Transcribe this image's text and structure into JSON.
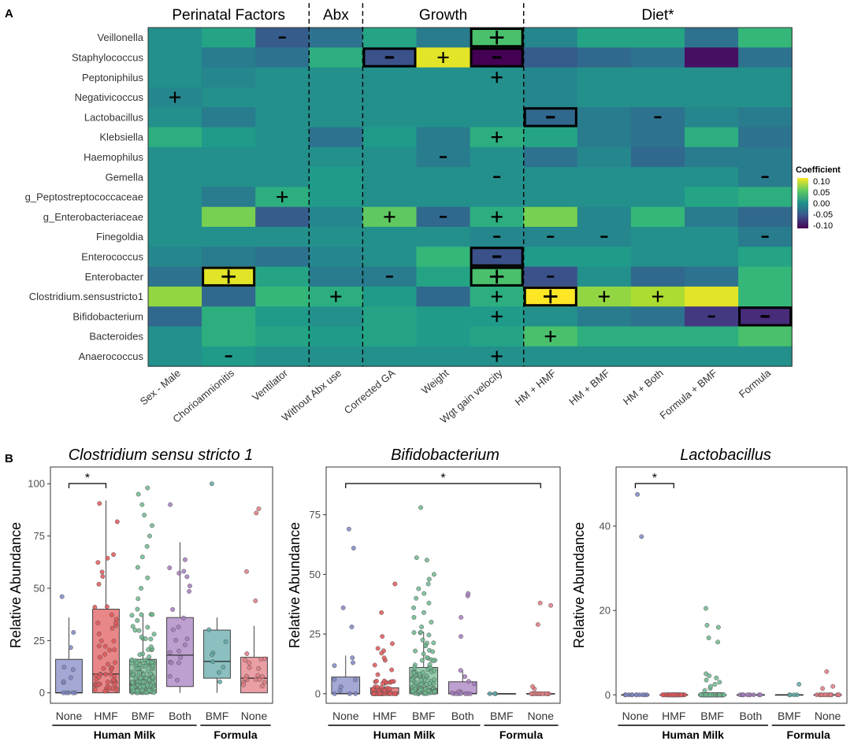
{
  "chart_data": [
    {
      "type": "heatmap",
      "panel_label": "A",
      "rows": [
        "Veillonella",
        "Staphylococcus",
        "Peptoniphilus",
        "Negativicoccus",
        "Lactobacillus",
        "Klebsiella",
        "Haemophilus",
        "Gemella",
        "g_Peptostreptococcaceae",
        "g_Enterobacteriaceae",
        "Finegoldia",
        "Enterococcus",
        "Enterobacter",
        "Clostridium.sensustricto1",
        "Bifidobacterium",
        "Bacteroides",
        "Anaerococcus"
      ],
      "columns": [
        "Sex - Male",
        "Chorioamnionitis",
        "Ventilator",
        "Without Abx use",
        "Corrected GA",
        "Weight",
        "Wgt gain velocity",
        "HM + HMF",
        "HM + BMF",
        "HM + Both",
        "Formula + BMF",
        "Formula"
      ],
      "groups": [
        {
          "label": "Perinatal Factors",
          "start": 0,
          "end": 2
        },
        {
          "label": "Abx",
          "start": 3,
          "end": 3
        },
        {
          "label": "Growth",
          "start": 4,
          "end": 6
        },
        {
          "label": "Diet*",
          "start": 7,
          "end": 11
        }
      ],
      "values": [
        [
          0.0,
          0.02,
          -0.05,
          -0.03,
          0.02,
          -0.02,
          0.05,
          -0.01,
          0.02,
          0.02,
          -0.03,
          0.04
        ],
        [
          0.0,
          -0.02,
          -0.03,
          0.03,
          -0.06,
          0.11,
          -0.12,
          -0.05,
          -0.04,
          -0.03,
          -0.11,
          -0.03
        ],
        [
          0.0,
          -0.01,
          0.0,
          0.0,
          0.0,
          0.0,
          0.0,
          -0.01,
          0.0,
          0.0,
          0.0,
          0.0
        ],
        [
          -0.01,
          0.0,
          0.0,
          0.0,
          0.0,
          0.0,
          0.0,
          -0.01,
          0.0,
          0.0,
          0.0,
          0.0
        ],
        [
          0.0,
          -0.02,
          0.0,
          0.0,
          0.0,
          0.0,
          0.0,
          -0.04,
          -0.02,
          -0.03,
          -0.01,
          -0.02
        ],
        [
          0.03,
          0.01,
          0.0,
          -0.03,
          0.01,
          -0.02,
          0.03,
          0.02,
          -0.02,
          -0.03,
          0.03,
          -0.03
        ],
        [
          0.0,
          0.0,
          0.0,
          0.0,
          0.0,
          -0.02,
          0.0,
          -0.03,
          -0.01,
          -0.04,
          -0.02,
          -0.02
        ],
        [
          0.0,
          0.0,
          0.0,
          0.01,
          0.0,
          0.0,
          0.0,
          0.0,
          0.0,
          0.0,
          0.0,
          -0.02
        ],
        [
          0.0,
          -0.02,
          0.03,
          0.01,
          0.0,
          0.0,
          0.0,
          0.0,
          0.0,
          0.0,
          0.02,
          0.03
        ],
        [
          0.0,
          0.07,
          -0.05,
          -0.01,
          0.06,
          -0.04,
          0.03,
          0.07,
          -0.01,
          0.04,
          -0.02,
          -0.04
        ],
        [
          0.0,
          0.0,
          0.0,
          0.0,
          0.0,
          0.0,
          -0.01,
          -0.01,
          -0.01,
          0.0,
          0.0,
          -0.02
        ],
        [
          -0.01,
          -0.02,
          -0.03,
          -0.01,
          0.0,
          0.04,
          -0.06,
          0.01,
          0.01,
          0.0,
          0.0,
          0.02
        ],
        [
          -0.03,
          0.11,
          0.02,
          -0.02,
          -0.02,
          0.02,
          0.05,
          -0.06,
          0.0,
          -0.04,
          -0.03,
          0.04
        ],
        [
          0.08,
          -0.04,
          0.04,
          0.03,
          0.01,
          -0.04,
          0.03,
          0.12,
          0.08,
          0.09,
          0.11,
          0.04
        ],
        [
          -0.04,
          0.03,
          0.01,
          0.0,
          0.02,
          0.01,
          0.01,
          0.0,
          -0.02,
          -0.03,
          -0.08,
          -0.09
        ],
        [
          0.0,
          0.03,
          0.02,
          0.01,
          0.02,
          0.01,
          0.02,
          0.05,
          0.03,
          0.03,
          0.03,
          0.05
        ],
        [
          0.0,
          0.01,
          0.0,
          0.0,
          0.0,
          0.0,
          0.0,
          0.0,
          0.0,
          0.0,
          0.0,
          0.0
        ]
      ],
      "annotations": [
        {
          "row": 0,
          "col": 2,
          "sym": "-"
        },
        {
          "row": 0,
          "col": 6,
          "sym": "+",
          "boxed": true
        },
        {
          "row": 1,
          "col": 4,
          "sym": "-",
          "boxed": true
        },
        {
          "row": 1,
          "col": 5,
          "sym": "+"
        },
        {
          "row": 1,
          "col": 6,
          "sym": "-",
          "boxed": true
        },
        {
          "row": 2,
          "col": 6,
          "sym": "+"
        },
        {
          "row": 3,
          "col": 0,
          "sym": "+"
        },
        {
          "row": 4,
          "col": 7,
          "sym": "-",
          "boxed": true
        },
        {
          "row": 4,
          "col": 9,
          "sym": "-"
        },
        {
          "row": 5,
          "col": 6,
          "sym": "+"
        },
        {
          "row": 6,
          "col": 5,
          "sym": "-"
        },
        {
          "row": 7,
          "col": 6,
          "sym": "-"
        },
        {
          "row": 7,
          "col": 11,
          "sym": "-"
        },
        {
          "row": 8,
          "col": 2,
          "sym": "+"
        },
        {
          "row": 9,
          "col": 4,
          "sym": "+"
        },
        {
          "row": 9,
          "col": 5,
          "sym": "-"
        },
        {
          "row": 9,
          "col": 6,
          "sym": "+"
        },
        {
          "row": 10,
          "col": 6,
          "sym": "-"
        },
        {
          "row": 10,
          "col": 7,
          "sym": "-"
        },
        {
          "row": 10,
          "col": 8,
          "sym": "-"
        },
        {
          "row": 10,
          "col": 11,
          "sym": "-"
        },
        {
          "row": 11,
          "col": 6,
          "sym": "-",
          "boxed": true
        },
        {
          "row": 12,
          "col": 1,
          "sym": "+",
          "boxed": true
        },
        {
          "row": 12,
          "col": 4,
          "sym": "-"
        },
        {
          "row": 12,
          "col": 6,
          "sym": "+",
          "boxed": true
        },
        {
          "row": 12,
          "col": 7,
          "sym": "-"
        },
        {
          "row": 13,
          "col": 3,
          "sym": "+"
        },
        {
          "row": 13,
          "col": 6,
          "sym": "+"
        },
        {
          "row": 13,
          "col": 7,
          "sym": "+",
          "boxed": true
        },
        {
          "row": 13,
          "col": 8,
          "sym": "+"
        },
        {
          "row": 13,
          "col": 9,
          "sym": "+"
        },
        {
          "row": 14,
          "col": 6,
          "sym": "+"
        },
        {
          "row": 14,
          "col": 10,
          "sym": "-"
        },
        {
          "row": 14,
          "col": 11,
          "sym": "-",
          "boxed": true
        },
        {
          "row": 15,
          "col": 7,
          "sym": "+"
        },
        {
          "row": 16,
          "col": 1,
          "sym": "-"
        },
        {
          "row": 16,
          "col": 6,
          "sym": "+"
        }
      ],
      "legend": {
        "title": "Coefficient",
        "ticks": [
          "0.10",
          "0.05",
          "0.00",
          "-0.05",
          "-0.10"
        ],
        "range": [
          -0.12,
          0.12
        ]
      }
    },
    {
      "type": "box",
      "panel_label": "B",
      "title": "Clostridium sensu stricto 1",
      "ylabel": "Relative Abundance",
      "ylim": [
        -5,
        108
      ],
      "yticks": [
        "0",
        "25",
        "50",
        "75",
        "100"
      ],
      "categories": [
        "None",
        "HMF",
        "BMF",
        "Both",
        "BMF",
        "None"
      ],
      "groups": [
        {
          "label": "Human Milk",
          "start": 0,
          "end": 3
        },
        {
          "label": "Formula",
          "start": 4,
          "end": 5
        }
      ],
      "colors": [
        "#7f86c4",
        "#e15759",
        "#6fb98f",
        "#a47cbd",
        "#5fa8a8",
        "#e07a82"
      ],
      "boxes": [
        {
          "q1": 0,
          "median": 0,
          "q3": 16,
          "low": 0,
          "high": 36,
          "n": 12,
          "out": [
            46
          ]
        },
        {
          "q1": 0,
          "median": 9,
          "q3": 40,
          "low": 0,
          "high": 92,
          "n": 60,
          "out": []
        },
        {
          "q1": 0,
          "median": 4,
          "q3": 16,
          "low": 0,
          "high": 38,
          "n": 200,
          "out": [
            40,
            45,
            50,
            55,
            60,
            65,
            70,
            75,
            80,
            85,
            90,
            95,
            98
          ]
        },
        {
          "q1": 3,
          "median": 18,
          "q3": 36,
          "low": 0,
          "high": 72,
          "n": 22,
          "out": [
            90
          ]
        },
        {
          "q1": 7,
          "median": 15,
          "q3": 30,
          "low": 0,
          "high": 36,
          "n": 8,
          "out": [
            100
          ]
        },
        {
          "q1": 0,
          "median": 7,
          "q3": 17,
          "low": 0,
          "high": 32,
          "n": 18,
          "out": [
            44,
            58,
            86,
            88
          ]
        }
      ],
      "significance": [
        {
          "from": 0,
          "to": 1,
          "label": "*"
        }
      ]
    },
    {
      "type": "box",
      "title": "Bifidobacterium",
      "ylabel": "Relative Abundance",
      "ylim": [
        -4,
        95
      ],
      "yticks": [
        "0",
        "25",
        "50",
        "75"
      ],
      "categories": [
        "None",
        "HMF",
        "BMF",
        "Both",
        "BMF",
        "None"
      ],
      "groups": [
        {
          "label": "Human Milk",
          "start": 0,
          "end": 3
        },
        {
          "label": "Formula",
          "start": 4,
          "end": 5
        }
      ],
      "colors": [
        "#7f86c4",
        "#e15759",
        "#6fb98f",
        "#a47cbd",
        "#5fa8a8",
        "#e07a82"
      ],
      "boxes": [
        {
          "q1": 0,
          "median": 0,
          "q3": 7,
          "low": 0,
          "high": 16,
          "n": 10,
          "out": [
            28,
            36,
            61,
            69
          ]
        },
        {
          "q1": 0,
          "median": 0,
          "q3": 2.5,
          "low": 0,
          "high": 6,
          "n": 55,
          "out": [
            8,
            10,
            12,
            14,
            15,
            17,
            18,
            19,
            21,
            24,
            34,
            46
          ]
        },
        {
          "q1": 0,
          "median": 2,
          "q3": 11,
          "low": 0,
          "high": 26,
          "n": 150,
          "out": [
            28,
            30,
            32,
            34,
            36,
            38,
            40,
            42,
            44,
            46,
            48,
            50,
            56,
            57,
            78
          ]
        },
        {
          "q1": 0,
          "median": 0,
          "q3": 5,
          "low": 0,
          "high": 10,
          "n": 14,
          "out": [
            24,
            32,
            41,
            42
          ]
        },
        {
          "q1": 0,
          "median": 0,
          "q3": 0,
          "low": 0,
          "high": 0,
          "n": 3,
          "out": []
        },
        {
          "q1": 0,
          "median": 0,
          "q3": 0,
          "low": 0,
          "high": 0,
          "n": 18,
          "out": [
            2,
            3,
            29,
            37,
            38
          ]
        }
      ],
      "significance": [
        {
          "from": 0,
          "to": 5,
          "label": "*"
        }
      ]
    },
    {
      "type": "box",
      "title": "Lactobacillus",
      "ylabel": "Relative Abundance",
      "ylim": [
        -2,
        54
      ],
      "yticks": [
        "0",
        "20",
        "40"
      ],
      "categories": [
        "None",
        "HMF",
        "BMF",
        "Both",
        "BMF",
        "None"
      ],
      "groups": [
        {
          "label": "Human Milk",
          "start": 0,
          "end": 3
        },
        {
          "label": "Formula",
          "start": 4,
          "end": 5
        }
      ],
      "colors": [
        "#7f86c4",
        "#e15759",
        "#6fb98f",
        "#a47cbd",
        "#5fa8a8",
        "#e07a82"
      ],
      "boxes": [
        {
          "q1": 0,
          "median": 0,
          "q3": 0,
          "low": 0,
          "high": 0,
          "n": 12,
          "out": [
            37.5,
            47.5
          ]
        },
        {
          "q1": 0,
          "median": 0,
          "q3": 0,
          "low": 0,
          "high": 0,
          "n": 50,
          "out": []
        },
        {
          "q1": 0,
          "median": 0,
          "q3": 0,
          "low": 0,
          "high": 0,
          "n": 150,
          "out": [
            1,
            1.5,
            2,
            2.5,
            3,
            3.5,
            4,
            4.5,
            5,
            12.5,
            13.5,
            16,
            16.5,
            20.5
          ]
        },
        {
          "q1": 0,
          "median": 0,
          "q3": 0,
          "low": 0,
          "high": 0,
          "n": 10,
          "out": []
        },
        {
          "q1": 0,
          "median": 0,
          "q3": 0,
          "low": 0,
          "high": 0,
          "n": 4,
          "out": [
            2.5
          ]
        },
        {
          "q1": 0,
          "median": 0,
          "q3": 0,
          "low": 0,
          "high": 0,
          "n": 14,
          "out": [
            1.5,
            2,
            5.5
          ]
        }
      ],
      "significance": [
        {
          "from": 0,
          "to": 1,
          "label": "*"
        }
      ]
    }
  ]
}
